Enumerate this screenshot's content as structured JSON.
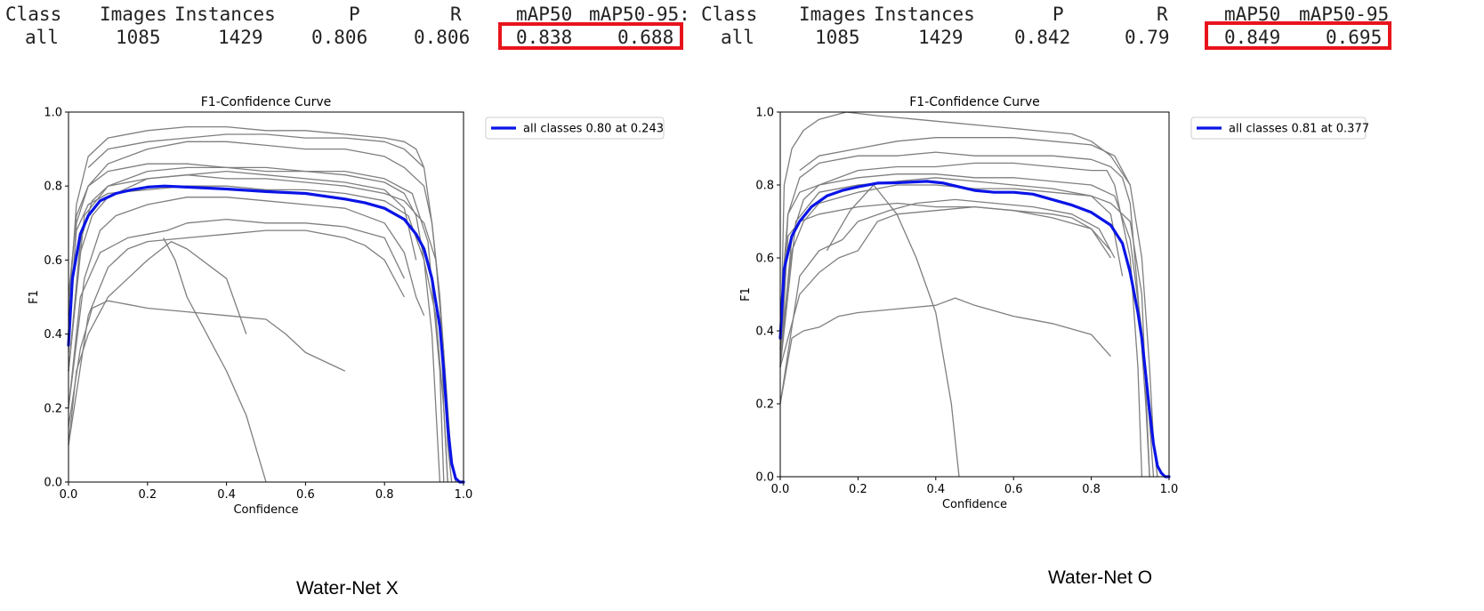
{
  "tables": [
    {
      "headers": [
        "Class",
        "Images",
        "Instances",
        "P",
        "R",
        "mAP50",
        "mAP50-95:"
      ],
      "row": [
        "all",
        "1085",
        "1429",
        "0.806",
        "0.806",
        "0.838",
        "0.688"
      ]
    },
    {
      "headers": [
        "Class",
        "Images",
        "Instances",
        "P",
        "R",
        "mAP50",
        "mAP50-95"
      ],
      "row": [
        "all",
        "1085",
        "1429",
        "0.842",
        "0.79",
        "0.849",
        "0.695"
      ]
    }
  ],
  "highlight_color": "#e8141c",
  "captions": [
    "Water-Net X",
    "Water-Net O"
  ],
  "chart_data": [
    {
      "type": "line",
      "title": "F1-Confidence Curve",
      "xlabel": "Confidence",
      "ylabel": "F1",
      "xlim": [
        0,
        1
      ],
      "ylim": [
        0,
        1
      ],
      "xticks": [
        "0.0",
        "0.2",
        "0.4",
        "0.6",
        "0.8",
        "1.0"
      ],
      "yticks": [
        "0.0",
        "0.2",
        "0.4",
        "0.6",
        "0.8",
        "1.0"
      ],
      "legend": "all classes 0.80 at 0.243",
      "legend_position": "outside-right-top",
      "main_color": "#0a14e6",
      "class_color": "#7f7f7f",
      "main_series": {
        "name": "all classes",
        "x": [
          0.0,
          0.01,
          0.03,
          0.05,
          0.08,
          0.12,
          0.16,
          0.2,
          0.243,
          0.3,
          0.4,
          0.5,
          0.6,
          0.7,
          0.75,
          0.8,
          0.85,
          0.88,
          0.9,
          0.92,
          0.94,
          0.95,
          0.96,
          0.97,
          0.98,
          0.99,
          1.0
        ],
        "y": [
          0.37,
          0.55,
          0.67,
          0.72,
          0.76,
          0.78,
          0.79,
          0.797,
          0.8,
          0.797,
          0.792,
          0.785,
          0.78,
          0.765,
          0.755,
          0.74,
          0.71,
          0.67,
          0.63,
          0.55,
          0.42,
          0.3,
          0.15,
          0.05,
          0.01,
          0.0,
          0.0
        ]
      },
      "class_series": [
        {
          "x": [
            0,
            0.02,
            0.05,
            0.1,
            0.2,
            0.3,
            0.4,
            0.5,
            0.6,
            0.7,
            0.8,
            0.85,
            0.88,
            0.9,
            0.92,
            0.94,
            0.96,
            0.97,
            0.98
          ],
          "y": [
            0.45,
            0.75,
            0.88,
            0.93,
            0.95,
            0.96,
            0.96,
            0.95,
            0.95,
            0.94,
            0.93,
            0.92,
            0.9,
            0.85,
            0.7,
            0.5,
            0.2,
            0.05,
            0
          ]
        },
        {
          "x": [
            0,
            0.02,
            0.05,
            0.1,
            0.2,
            0.3,
            0.4,
            0.5,
            0.6,
            0.7,
            0.8,
            0.85,
            0.9,
            0.92,
            0.94,
            0.95,
            0.96
          ],
          "y": [
            0.35,
            0.7,
            0.8,
            0.86,
            0.9,
            0.92,
            0.92,
            0.91,
            0.9,
            0.9,
            0.88,
            0.85,
            0.8,
            0.7,
            0.5,
            0.2,
            0
          ]
        },
        {
          "x": [
            0,
            0.03,
            0.06,
            0.1,
            0.2,
            0.3,
            0.4,
            0.5,
            0.6,
            0.7,
            0.8,
            0.85,
            0.88,
            0.9,
            0.92,
            0.93,
            0.94
          ],
          "y": [
            0.3,
            0.65,
            0.76,
            0.8,
            0.84,
            0.85,
            0.85,
            0.84,
            0.84,
            0.83,
            0.81,
            0.78,
            0.72,
            0.6,
            0.4,
            0.2,
            0
          ]
        },
        {
          "x": [
            0,
            0.03,
            0.06,
            0.1,
            0.2,
            0.3,
            0.4,
            0.5,
            0.6,
            0.7,
            0.8,
            0.85,
            0.9,
            0.93,
            0.95,
            0.96,
            0.97
          ],
          "y": [
            0.3,
            0.62,
            0.72,
            0.77,
            0.82,
            0.83,
            0.82,
            0.82,
            0.81,
            0.8,
            0.78,
            0.76,
            0.7,
            0.6,
            0.35,
            0.1,
            0
          ]
        },
        {
          "x": [
            0,
            0.02,
            0.05,
            0.1,
            0.2,
            0.3,
            0.4,
            0.5,
            0.6,
            0.7,
            0.8,
            0.86,
            0.9,
            0.93,
            0.95,
            0.96
          ],
          "y": [
            0.4,
            0.68,
            0.75,
            0.78,
            0.79,
            0.8,
            0.8,
            0.79,
            0.79,
            0.78,
            0.76,
            0.72,
            0.6,
            0.45,
            0.2,
            0
          ]
        },
        {
          "x": [
            0,
            0.04,
            0.08,
            0.12,
            0.2,
            0.3,
            0.4,
            0.5,
            0.6,
            0.7,
            0.8,
            0.85,
            0.88,
            0.9
          ],
          "y": [
            0.2,
            0.55,
            0.68,
            0.72,
            0.75,
            0.77,
            0.77,
            0.76,
            0.75,
            0.74,
            0.7,
            0.62,
            0.5,
            0.45
          ]
        },
        {
          "x": [
            0,
            0.02,
            0.05,
            0.1,
            0.2,
            0.3,
            0.4,
            0.5,
            0.6,
            0.7,
            0.8,
            0.87,
            0.91,
            0.94,
            0.95
          ],
          "y": [
            0.5,
            0.72,
            0.8,
            0.84,
            0.86,
            0.86,
            0.85,
            0.85,
            0.84,
            0.84,
            0.82,
            0.78,
            0.65,
            0.3,
            0
          ]
        },
        {
          "x": [
            0,
            0.05,
            0.1,
            0.15,
            0.2,
            0.3,
            0.4,
            0.5,
            0.6,
            0.7,
            0.75,
            0.8,
            0.85
          ],
          "y": [
            0.1,
            0.45,
            0.58,
            0.63,
            0.65,
            0.66,
            0.67,
            0.68,
            0.68,
            0.66,
            0.64,
            0.6,
            0.5
          ]
        },
        {
          "x": [
            0,
            0.03,
            0.08,
            0.15,
            0.2,
            0.25,
            0.3,
            0.4,
            0.5,
            0.6,
            0.7,
            0.8,
            0.85
          ],
          "y": [
            0.2,
            0.5,
            0.62,
            0.66,
            0.67,
            0.68,
            0.7,
            0.71,
            0.7,
            0.7,
            0.69,
            0.66,
            0.55
          ]
        },
        {
          "x": [
            0,
            0.02,
            0.05,
            0.08,
            0.1,
            0.15,
            0.2,
            0.26,
            0.3,
            0.4,
            0.45
          ],
          "y": [
            0.1,
            0.3,
            0.4,
            0.46,
            0.5,
            0.55,
            0.6,
            0.65,
            0.63,
            0.55,
            0.4
          ]
        },
        {
          "x": [
            0,
            0.03,
            0.06,
            0.1,
            0.15,
            0.2,
            0.3,
            0.4,
            0.5,
            0.55,
            0.6,
            0.7
          ],
          "y": [
            0.15,
            0.36,
            0.47,
            0.49,
            0.48,
            0.47,
            0.46,
            0.45,
            0.44,
            0.4,
            0.35,
            0.3
          ]
        },
        {
          "x": [
            0.24,
            0.27,
            0.3,
            0.35,
            0.4,
            0.45,
            0.5
          ],
          "y": [
            0.66,
            0.6,
            0.5,
            0.4,
            0.3,
            0.18,
            0.0
          ]
        },
        {
          "x": [
            0.05,
            0.1,
            0.2,
            0.3,
            0.4,
            0.5,
            0.6,
            0.7,
            0.8,
            0.85,
            0.9
          ],
          "y": [
            0.85,
            0.9,
            0.92,
            0.93,
            0.94,
            0.94,
            0.93,
            0.93,
            0.92,
            0.9,
            0.85
          ]
        },
        {
          "x": [
            0,
            0.04,
            0.1,
            0.2,
            0.3,
            0.4,
            0.5,
            0.6,
            0.7,
            0.8,
            0.85,
            0.88
          ],
          "y": [
            0.3,
            0.72,
            0.8,
            0.82,
            0.83,
            0.84,
            0.83,
            0.82,
            0.81,
            0.79,
            0.74,
            0.6
          ]
        }
      ]
    },
    {
      "type": "line",
      "title": "F1-Confidence Curve",
      "xlabel": "Confidence",
      "ylabel": "F1",
      "xlim": [
        0,
        1
      ],
      "ylim": [
        0,
        1
      ],
      "xticks": [
        "0.0",
        "0.2",
        "0.4",
        "0.6",
        "0.8",
        "1.0"
      ],
      "yticks": [
        "0.0",
        "0.2",
        "0.4",
        "0.6",
        "0.8",
        "1.0"
      ],
      "legend": "all classes 0.81 at 0.377",
      "legend_position": "outside-right-top",
      "main_color": "#0a14e6",
      "class_color": "#7f7f7f",
      "main_series": {
        "name": "all classes",
        "x": [
          0.0,
          0.01,
          0.03,
          0.05,
          0.08,
          0.12,
          0.16,
          0.2,
          0.25,
          0.3,
          0.377,
          0.42,
          0.46,
          0.5,
          0.55,
          0.6,
          0.65,
          0.7,
          0.75,
          0.8,
          0.85,
          0.88,
          0.9,
          0.92,
          0.93,
          0.94,
          0.95,
          0.96,
          0.97,
          0.98,
          0.99,
          1.0
        ],
        "y": [
          0.38,
          0.57,
          0.66,
          0.7,
          0.74,
          0.77,
          0.785,
          0.795,
          0.805,
          0.806,
          0.81,
          0.805,
          0.795,
          0.785,
          0.78,
          0.78,
          0.775,
          0.76,
          0.745,
          0.725,
          0.69,
          0.64,
          0.56,
          0.45,
          0.38,
          0.28,
          0.18,
          0.09,
          0.03,
          0.01,
          0.0,
          0.0
        ]
      },
      "class_series": [
        {
          "x": [
            0,
            0.01,
            0.03,
            0.06,
            0.1,
            0.17,
            0.25,
            0.35,
            0.45,
            0.55,
            0.65,
            0.75,
            0.8,
            0.85,
            0.9,
            0.93,
            0.95,
            0.96,
            0.97
          ],
          "y": [
            0.3,
            0.8,
            0.9,
            0.95,
            0.98,
            1.0,
            0.99,
            0.98,
            0.97,
            0.96,
            0.95,
            0.94,
            0.92,
            0.88,
            0.8,
            0.6,
            0.3,
            0.1,
            0
          ]
        },
        {
          "x": [
            0,
            0.02,
            0.05,
            0.1,
            0.2,
            0.3,
            0.4,
            0.5,
            0.6,
            0.7,
            0.8,
            0.85,
            0.88,
            0.9,
            0.92,
            0.94,
            0.95
          ],
          "y": [
            0.35,
            0.72,
            0.82,
            0.86,
            0.88,
            0.88,
            0.89,
            0.88,
            0.88,
            0.88,
            0.87,
            0.85,
            0.82,
            0.75,
            0.5,
            0.2,
            0
          ]
        },
        {
          "x": [
            0,
            0.03,
            0.06,
            0.1,
            0.2,
            0.3,
            0.4,
            0.5,
            0.6,
            0.7,
            0.8,
            0.84,
            0.86,
            0.9,
            0.92,
            0.93
          ],
          "y": [
            0.3,
            0.66,
            0.76,
            0.8,
            0.84,
            0.85,
            0.85,
            0.86,
            0.86,
            0.85,
            0.84,
            0.84,
            0.8,
            0.6,
            0.3,
            0
          ]
        },
        {
          "x": [
            0,
            0.03,
            0.06,
            0.1,
            0.2,
            0.3,
            0.4,
            0.5,
            0.6,
            0.7,
            0.8,
            0.85,
            0.9,
            0.93,
            0.95
          ],
          "y": [
            0.35,
            0.62,
            0.7,
            0.75,
            0.78,
            0.8,
            0.8,
            0.79,
            0.79,
            0.78,
            0.77,
            0.75,
            0.7,
            0.5,
            0
          ]
        },
        {
          "x": [
            0,
            0.02,
            0.05,
            0.1,
            0.2,
            0.3,
            0.4,
            0.5,
            0.6,
            0.7,
            0.8,
            0.86,
            0.9,
            0.93,
            0.95,
            0.96
          ],
          "y": [
            0.45,
            0.72,
            0.78,
            0.8,
            0.82,
            0.83,
            0.83,
            0.82,
            0.82,
            0.81,
            0.8,
            0.77,
            0.65,
            0.4,
            0.15,
            0
          ]
        },
        {
          "x": [
            0,
            0.05,
            0.1,
            0.15,
            0.2,
            0.25,
            0.3,
            0.4,
            0.5,
            0.6,
            0.7,
            0.8,
            0.85
          ],
          "y": [
            0.3,
            0.5,
            0.56,
            0.6,
            0.62,
            0.7,
            0.72,
            0.73,
            0.74,
            0.73,
            0.71,
            0.68,
            0.6
          ]
        },
        {
          "x": [
            0,
            0.02,
            0.05,
            0.1,
            0.2,
            0.3,
            0.4,
            0.5,
            0.6,
            0.7,
            0.75,
            0.8,
            0.85
          ],
          "y": [
            0.3,
            0.66,
            0.7,
            0.72,
            0.74,
            0.75,
            0.74,
            0.74,
            0.73,
            0.72,
            0.71,
            0.68,
            0.62
          ]
        },
        {
          "x": [
            0,
            0.03,
            0.06,
            0.1,
            0.15,
            0.2,
            0.3,
            0.4,
            0.45,
            0.5,
            0.6,
            0.7,
            0.8,
            0.85
          ],
          "y": [
            0.2,
            0.38,
            0.4,
            0.41,
            0.44,
            0.45,
            0.46,
            0.47,
            0.49,
            0.47,
            0.44,
            0.42,
            0.39,
            0.33
          ]
        },
        {
          "x": [
            0.12,
            0.18,
            0.24,
            0.3,
            0.35,
            0.4,
            0.44,
            0.46
          ],
          "y": [
            0.62,
            0.73,
            0.8,
            0.72,
            0.6,
            0.45,
            0.2,
            0.0
          ]
        },
        {
          "x": [
            0.05,
            0.1,
            0.2,
            0.3,
            0.4,
            0.5,
            0.6,
            0.7,
            0.8,
            0.86,
            0.9
          ],
          "y": [
            0.84,
            0.88,
            0.9,
            0.92,
            0.93,
            0.93,
            0.93,
            0.92,
            0.91,
            0.88,
            0.8
          ]
        },
        {
          "x": [
            0,
            0.04,
            0.1,
            0.2,
            0.3,
            0.4,
            0.5,
            0.6,
            0.7,
            0.8,
            0.85,
            0.88
          ],
          "y": [
            0.3,
            0.7,
            0.78,
            0.8,
            0.81,
            0.82,
            0.81,
            0.8,
            0.79,
            0.77,
            0.72,
            0.55
          ]
        },
        {
          "x": [
            0,
            0.05,
            0.1,
            0.16,
            0.2,
            0.28,
            0.35,
            0.45,
            0.55,
            0.65,
            0.75,
            0.82,
            0.86
          ],
          "y": [
            0.2,
            0.55,
            0.62,
            0.65,
            0.7,
            0.73,
            0.75,
            0.76,
            0.75,
            0.74,
            0.72,
            0.68,
            0.6
          ]
        }
      ]
    }
  ]
}
